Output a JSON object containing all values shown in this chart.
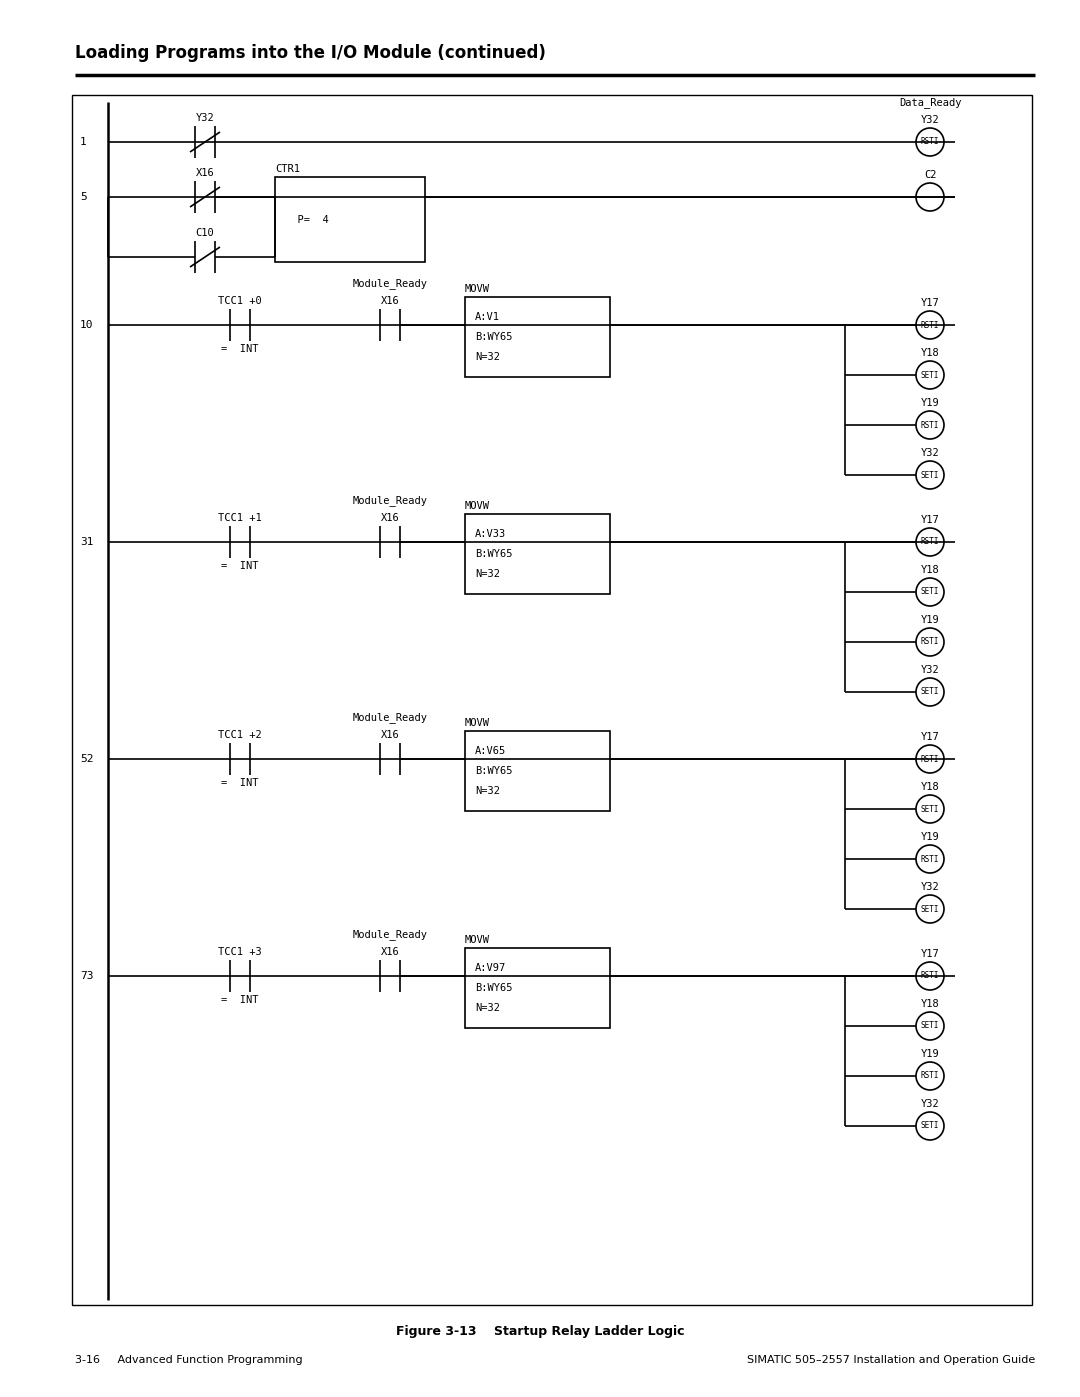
{
  "title": "Loading Programs into the I/O Module (continued)",
  "fig_caption": "Figure 3-13    Startup Relay Ladder Logic",
  "footer_left": "3-16     Advanced Function Programming",
  "footer_right": "SIMATIC 505–2557 Installation and Operation Guide",
  "bg_color": "#ffffff",
  "rung10": {
    "outputs": [
      {
        "label": "Y17",
        "type": "RSTI"
      },
      {
        "label": "Y18",
        "type": "SETI"
      },
      {
        "label": "Y19",
        "type": "RSTI"
      },
      {
        "label": "Y32",
        "type": "SETI"
      }
    ]
  },
  "rung31": {
    "outputs": [
      {
        "label": "Y17",
        "type": "RSTI"
      },
      {
        "label": "Y18",
        "type": "SETI"
      },
      {
        "label": "Y19",
        "type": "RSTI"
      },
      {
        "label": "Y32",
        "type": "SETI"
      }
    ]
  },
  "rung52": {
    "outputs": [
      {
        "label": "Y17",
        "type": "RSTI"
      },
      {
        "label": "Y18",
        "type": "SETI"
      },
      {
        "label": "Y19",
        "type": "RSTI"
      },
      {
        "label": "Y32",
        "type": "SETI"
      }
    ]
  },
  "rung73": {
    "outputs": [
      {
        "label": "Y17",
        "type": "RSTI"
      },
      {
        "label": "Y18",
        "type": "SETI"
      },
      {
        "label": "Y19",
        "type": "RSTI"
      },
      {
        "label": "Y32",
        "type": "SETI"
      }
    ]
  }
}
